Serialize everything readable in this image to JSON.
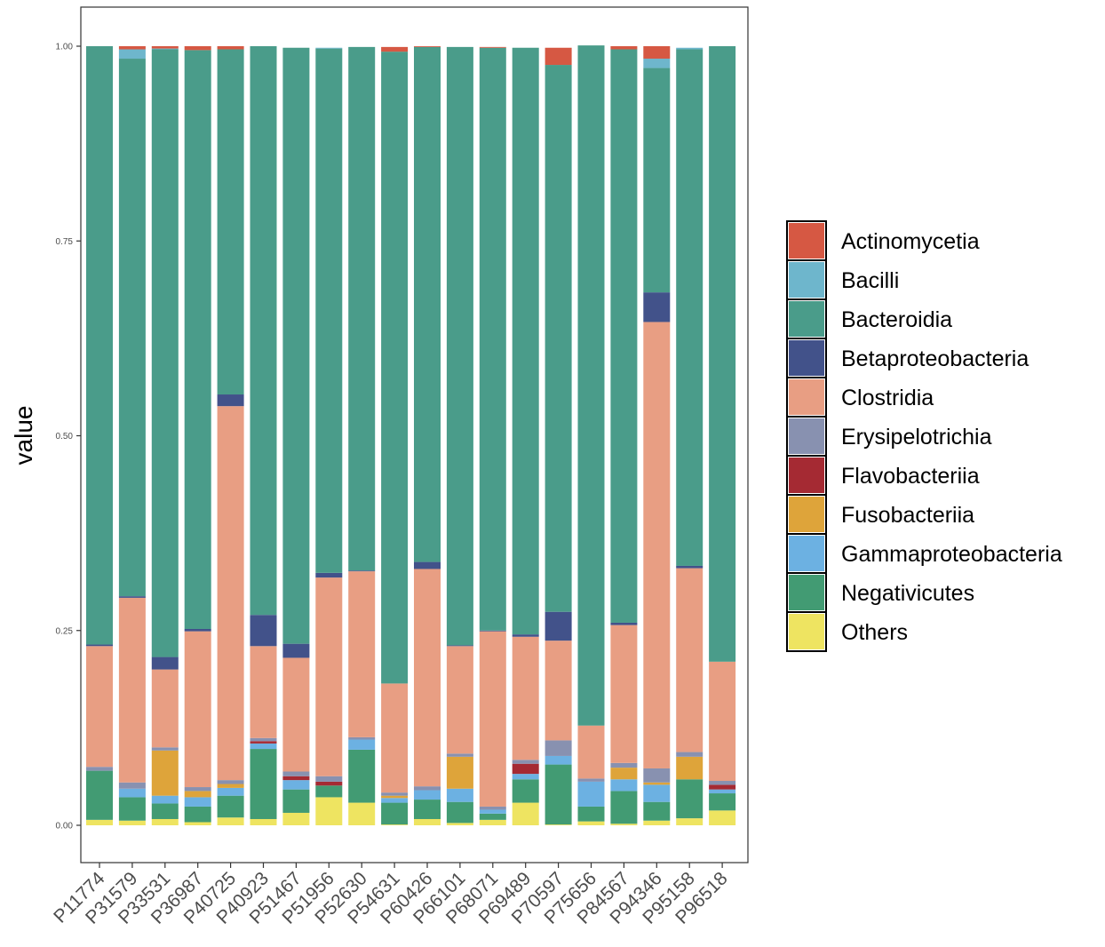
{
  "chart_data": {
    "type": "bar",
    "stacked": true,
    "title": "",
    "xlabel": "",
    "ylabel": "value",
    "ylim": [
      0,
      1
    ],
    "y_ticks": [
      "0.00",
      "0.25",
      "0.50",
      "0.75",
      "1.00"
    ],
    "legend_position": "right",
    "categories": [
      "P11774",
      "P31579",
      "P33531",
      "P36987",
      "P40725",
      "P40923",
      "P51467",
      "P51956",
      "P52630",
      "P54631",
      "P60426",
      "P66101",
      "P68071",
      "P69489",
      "P70597",
      "P75656",
      "P84567",
      "P94346",
      "P95158",
      "P96518"
    ],
    "series": [
      {
        "name": "Others",
        "color": "#EEE461",
        "values": [
          0.007,
          0.006,
          0.008,
          0.004,
          0.01,
          0.008,
          0.016,
          0.036,
          0.029,
          0.001,
          0.008,
          0.003,
          0.007,
          0.029,
          0.001,
          0.005,
          0.002,
          0.006,
          0.009,
          0.019
        ]
      },
      {
        "name": "Negativicutes",
        "color": "#429B73",
        "values": [
          0.063,
          0.03,
          0.02,
          0.02,
          0.028,
          0.09,
          0.03,
          0.015,
          0.068,
          0.028,
          0.025,
          0.027,
          0.008,
          0.03,
          0.077,
          0.019,
          0.042,
          0.024,
          0.05,
          0.022
        ]
      },
      {
        "name": "Gammaproteobacteria",
        "color": "#6CB1E2",
        "values": [
          0.0,
          0.011,
          0.01,
          0.012,
          0.01,
          0.007,
          0.012,
          0.0,
          0.013,
          0.006,
          0.012,
          0.017,
          0.005,
          0.007,
          0.011,
          0.032,
          0.015,
          0.022,
          0.0,
          0.005
        ]
      },
      {
        "name": "Fusobacteriia",
        "color": "#DEA43A",
        "values": [
          0.0,
          0.0,
          0.058,
          0.008,
          0.005,
          0.0,
          0.0,
          0.0,
          0.0,
          0.003,
          0.0,
          0.041,
          0.0,
          0.0,
          0.0,
          0.0,
          0.015,
          0.003,
          0.029,
          0.0
        ]
      },
      {
        "name": "Flavobacteriia",
        "color": "#A52A33",
        "values": [
          0.0,
          0.0,
          0.0,
          0.0,
          0.0,
          0.003,
          0.005,
          0.005,
          0.0,
          0.0,
          0.0,
          0.0,
          0.0,
          0.013,
          0.0,
          0.0,
          0.0,
          0.0,
          0.0,
          0.006
        ]
      },
      {
        "name": "Erysipelotrichia",
        "color": "#8891B0",
        "values": [
          0.005,
          0.008,
          0.004,
          0.005,
          0.005,
          0.004,
          0.006,
          0.007,
          0.003,
          0.004,
          0.005,
          0.004,
          0.004,
          0.005,
          0.02,
          0.004,
          0.006,
          0.018,
          0.006,
          0.005
        ]
      },
      {
        "name": "Clostridia",
        "color": "#E89E83",
        "values": [
          0.155,
          0.237,
          0.1,
          0.2,
          0.48,
          0.118,
          0.146,
          0.255,
          0.213,
          0.14,
          0.279,
          0.138,
          0.225,
          0.158,
          0.128,
          0.068,
          0.177,
          0.573,
          0.236,
          0.153
        ]
      },
      {
        "name": "Betaproteobacteria",
        "color": "#42528A",
        "values": [
          0.002,
          0.002,
          0.016,
          0.003,
          0.015,
          0.04,
          0.018,
          0.006,
          0.001,
          0.0,
          0.009,
          0.001,
          0.001,
          0.003,
          0.037,
          0.0,
          0.003,
          0.038,
          0.003,
          0.0
        ]
      },
      {
        "name": "Bacteroidia",
        "color": "#4A9C8A",
        "values": [
          0.768,
          0.69,
          0.78,
          0.743,
          0.443,
          0.73,
          0.765,
          0.673,
          0.672,
          0.811,
          0.661,
          0.768,
          0.748,
          0.753,
          0.702,
          0.873,
          0.736,
          0.288,
          0.663,
          0.79
        ]
      },
      {
        "name": "Bacilli",
        "color": "#6EB6CC",
        "values": [
          0.0,
          0.012,
          0.001,
          0.0,
          0.0,
          0.0,
          0.0,
          0.001,
          0.0,
          0.0,
          0.0,
          0.0,
          0.0,
          0.0,
          0.0,
          0.0,
          0.0,
          0.012,
          0.002,
          0.0
        ]
      },
      {
        "name": "Actinomycetia",
        "color": "#D65843",
        "values": [
          0.0,
          0.004,
          0.003,
          0.005,
          0.004,
          0.0,
          0.0,
          0.0,
          0.0,
          0.006,
          0.001,
          0.0,
          0.001,
          0.0,
          0.022,
          0.0,
          0.004,
          0.016,
          0.0,
          0.0
        ]
      }
    ],
    "legend": [
      "Actinomycetia",
      "Bacilli",
      "Bacteroidia",
      "Betaproteobacteria",
      "Clostridia",
      "Erysipelotrichia",
      "Flavobacteriia",
      "Fusobacteriia",
      "Gammaproteobacteria",
      "Negativicutes",
      "Others"
    ]
  }
}
